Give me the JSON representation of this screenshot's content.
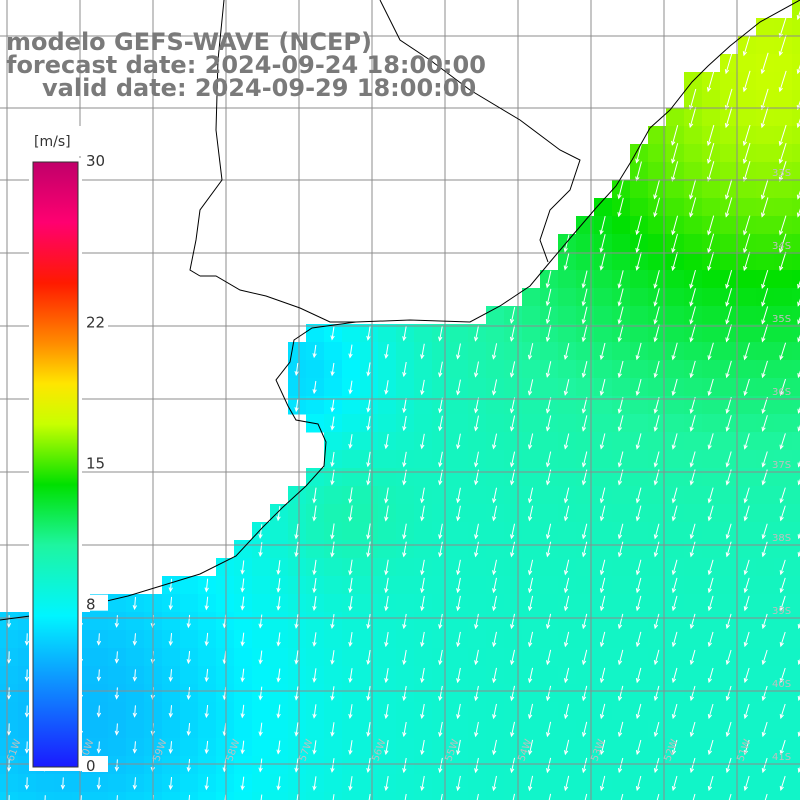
{
  "titles": {
    "line1": "modelo GEFS-WAVE (NCEP)",
    "line2": "forecast date: 2024-09-24 18:00:00",
    "line3": "valid date: 2024-09-29 18:00:00"
  },
  "colorbar": {
    "unit": "[m/s]",
    "range": [
      0,
      30
    ],
    "ticks": [
      {
        "value": 30,
        "label": "30"
      },
      {
        "value": 22,
        "label": "22"
      },
      {
        "value": 15,
        "label": "15"
      },
      {
        "value": 8,
        "label": "8"
      },
      {
        "value": 0,
        "label": "0"
      }
    ],
    "stops": [
      {
        "value": 0,
        "color": "#1a1aff"
      },
      {
        "value": 4,
        "color": "#0f8cff"
      },
      {
        "value": 7.5,
        "color": "#00f5ff"
      },
      {
        "value": 11,
        "color": "#1ef5a0"
      },
      {
        "value": 14,
        "color": "#00e000"
      },
      {
        "value": 17,
        "color": "#c8ff00"
      },
      {
        "value": 19,
        "color": "#ffe600"
      },
      {
        "value": 21,
        "color": "#ff8c00"
      },
      {
        "value": 24,
        "color": "#ff1a00"
      },
      {
        "value": 27,
        "color": "#ff0070"
      },
      {
        "value": 30,
        "color": "#c0006a"
      }
    ]
  },
  "lon_labels": [
    "61W",
    "60W",
    "59W",
    "58W",
    "57W",
    "56W",
    "55W",
    "54W",
    "53W",
    "52W",
    "51W"
  ],
  "lat_labels": [
    "33S",
    "34S",
    "35S",
    "36S",
    "37S",
    "38S",
    "39S",
    "40S",
    "41S"
  ],
  "field": {
    "variable": "wind speed",
    "units": "m/s",
    "arrow_direction": "toward south-southwest"
  },
  "colors": {
    "land": "#ffffff",
    "grid": "#8c8c8c",
    "coast": "#000000",
    "arrows": "#ffffff",
    "title": "#7a7a7a"
  }
}
